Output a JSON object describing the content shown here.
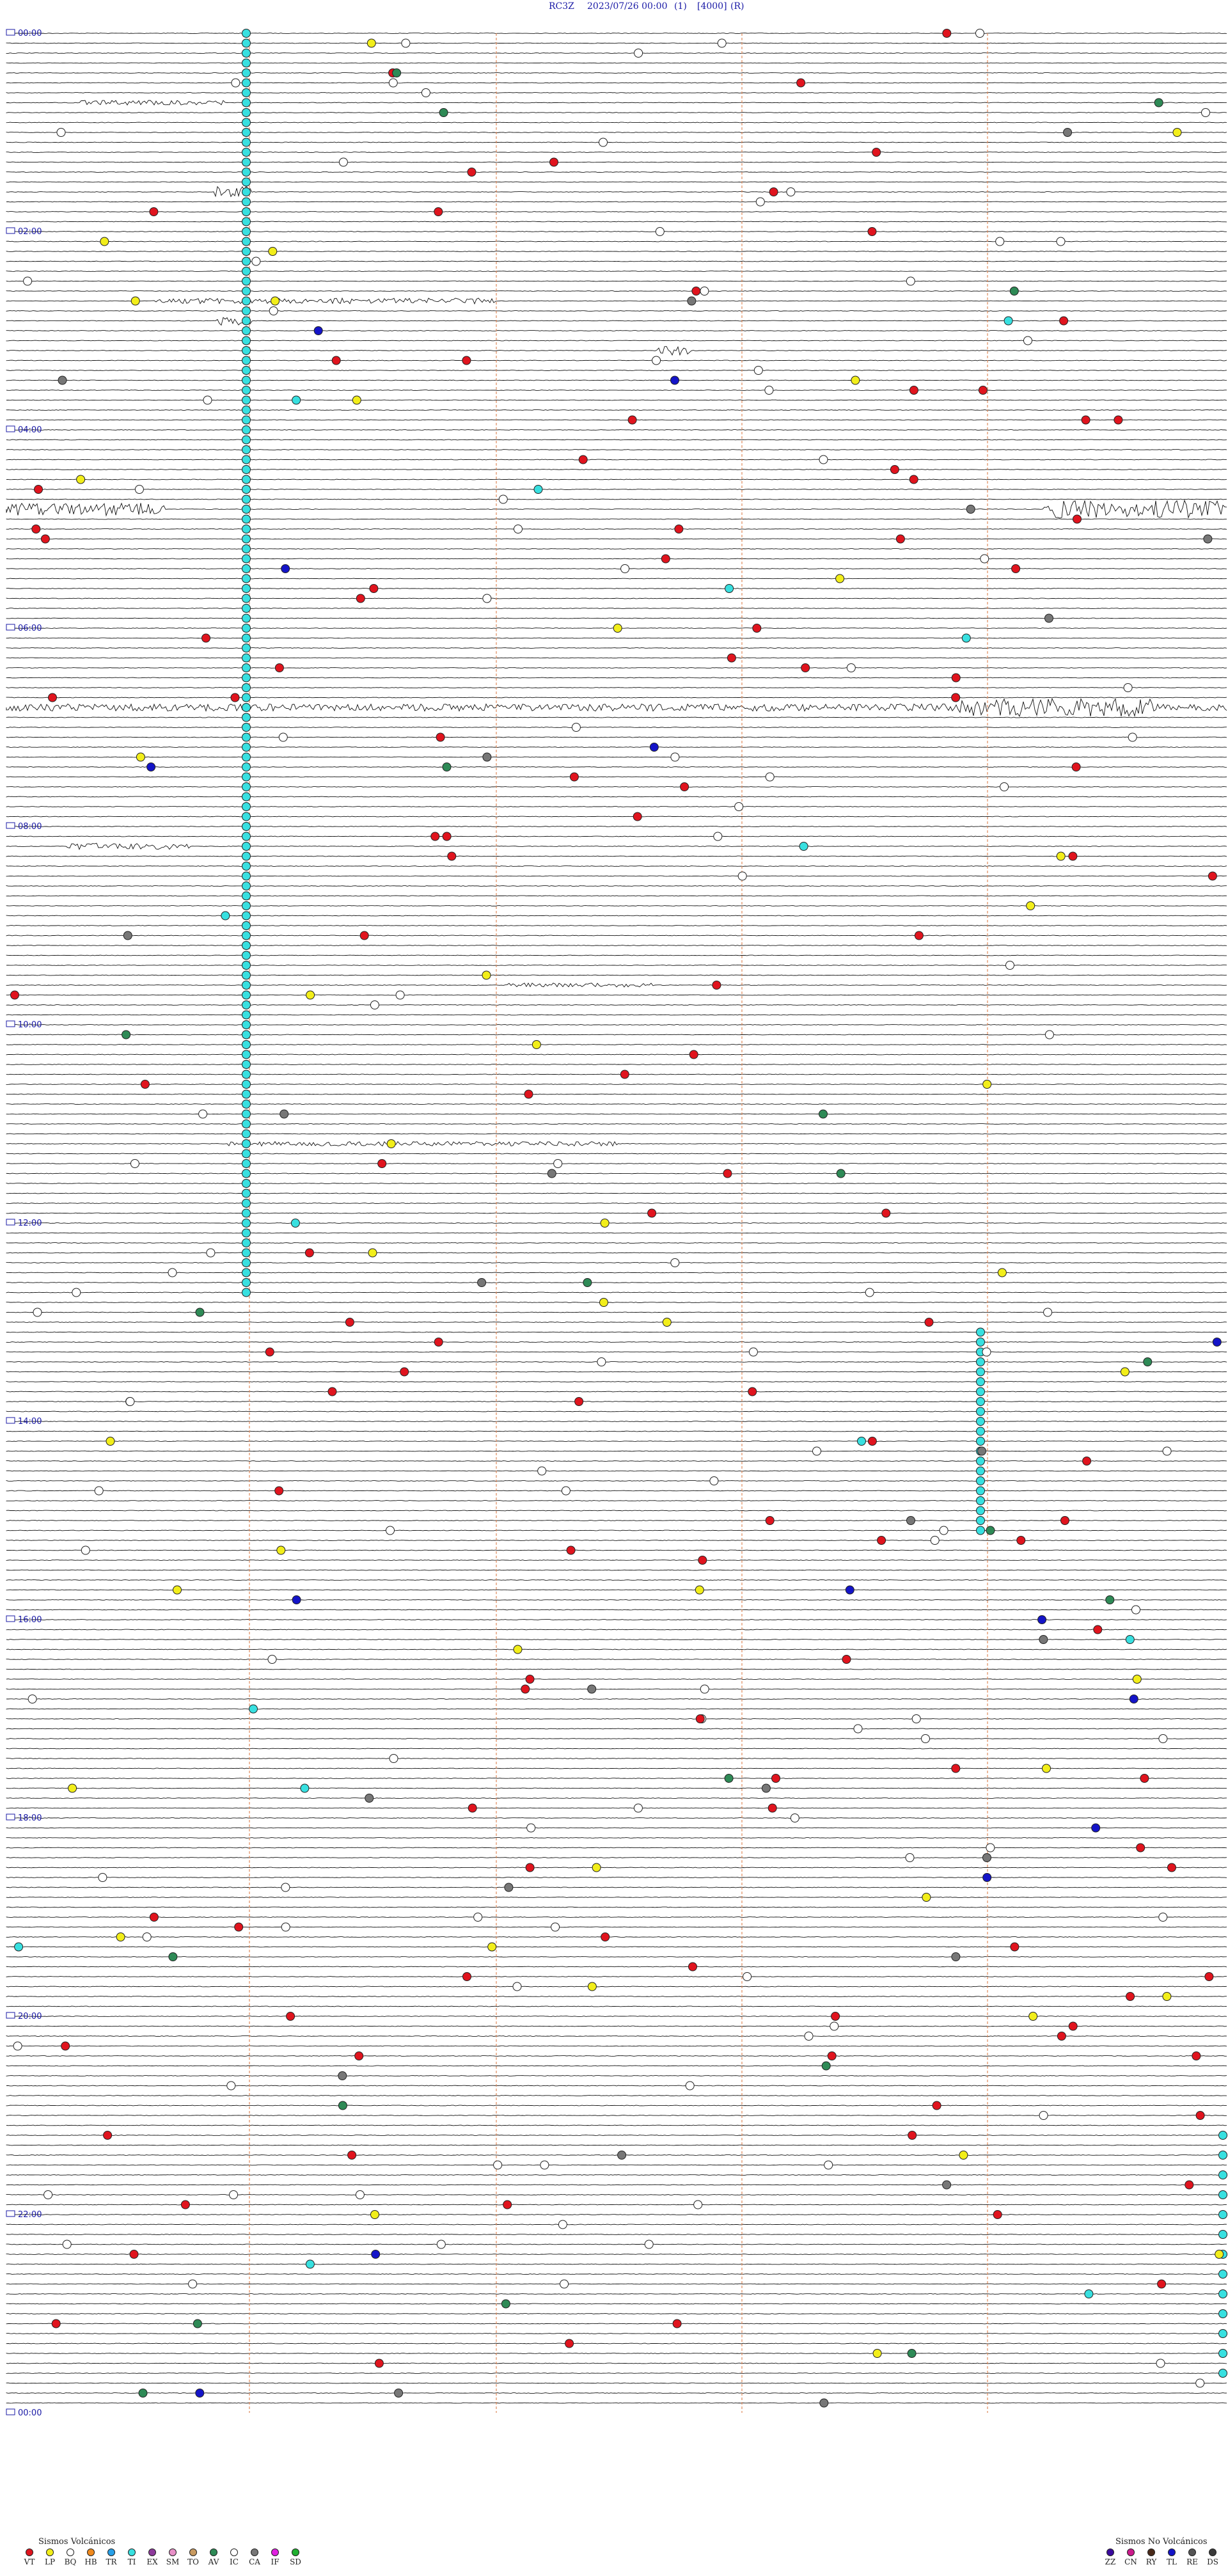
{
  "header": {
    "station": "RC3Z",
    "datetime": "2023/07/26 00:00",
    "filter": "(1)",
    "scale": "[4000]",
    "mode": "(R)"
  },
  "hour_labels": [
    "00:00",
    "02:00",
    "04:00",
    "06:00",
    "08:00",
    "10:00",
    "12:00",
    "14:00",
    "16:00",
    "18:00",
    "20:00",
    "22:00",
    "00:00"
  ],
  "colors": {
    "trace": "#111111",
    "hour_text": "#1a1aa6",
    "minute_marker": "#e08a5a",
    "VT": "#e0141e",
    "LP": "#f2ee1a",
    "BQ": "#ffffff",
    "HB": "#f08a1e",
    "TR": "#28a0e8",
    "TI": "#38e0e0",
    "EX": "#8e3a9c",
    "SM": "#e890c8",
    "TO": "#c89a60",
    "AV": "#2e8a56",
    "IC": "#ffffff",
    "CA": "#777777",
    "IF": "#e020e0",
    "SD": "#20b030",
    "ZZ": "#3a0a9e",
    "CN": "#cc1a8c",
    "RY": "#4a2a1a",
    "TL": "#1414c8",
    "RE": "#555555",
    "DS": "#3a3a3a"
  },
  "legend": {
    "volcanic_title": "Sismos Volcánicos",
    "volcanic": [
      {
        "code": "VT",
        "color": "#e0141e"
      },
      {
        "code": "LP",
        "color": "#f2ee1a"
      },
      {
        "code": "BQ",
        "color": "#ffffff"
      },
      {
        "code": "HB",
        "color": "#f08a1e"
      },
      {
        "code": "TR",
        "color": "#28a0e8"
      },
      {
        "code": "TI",
        "color": "#38e0e0"
      },
      {
        "code": "EX",
        "color": "#8e3a9c"
      },
      {
        "code": "SM",
        "color": "#e890c8"
      },
      {
        "code": "TO",
        "color": "#c89a60"
      },
      {
        "code": "AV",
        "color": "#2e8a56"
      },
      {
        "code": "IC",
        "color": "#ffffff"
      },
      {
        "code": "CA",
        "color": "#777777"
      },
      {
        "code": "IF",
        "color": "#e020e0"
      },
      {
        "code": "SD",
        "color": "#20b030"
      }
    ],
    "nonvolcanic_title": "Sismos No Volcánicos",
    "nonvolcanic": [
      {
        "code": "ZZ",
        "color": "#3a0a9e"
      },
      {
        "code": "CN",
        "color": "#cc1a8c"
      },
      {
        "code": "RY",
        "color": "#4a2a1a"
      },
      {
        "code": "TL",
        "color": "#1414c8"
      },
      {
        "code": "RE",
        "color": "#555555"
      },
      {
        "code": "DS",
        "color": "#3a3a3a"
      }
    ]
  },
  "bursts": [
    {
      "row": 7,
      "at": 0.06,
      "width": 0.12,
      "amp": 0.9
    },
    {
      "row": 16,
      "at": 0.17,
      "width": 0.03,
      "amp": 2.5
    },
    {
      "row": 27,
      "at": 0.12,
      "width": 0.28,
      "amp": 1.1
    },
    {
      "row": 29,
      "at": 0.17,
      "width": 0.03,
      "amp": 1.8
    },
    {
      "row": 32,
      "at": 0.53,
      "width": 0.03,
      "amp": 1.8
    },
    {
      "row": 48,
      "at": 0.0,
      "width": 0.13,
      "amp": 2.5
    },
    {
      "row": 48,
      "at": 0.85,
      "width": 0.15,
      "amp": 3.5
    },
    {
      "row": 68,
      "at": 0.0,
      "width": 1.0,
      "amp": 1.4
    },
    {
      "row": 68,
      "at": 0.78,
      "width": 0.16,
      "amp": 3.5
    },
    {
      "row": 82,
      "at": 0.05,
      "width": 0.1,
      "amp": 1.2
    },
    {
      "row": 112,
      "at": 0.18,
      "width": 0.32,
      "amp": 0.9
    },
    {
      "row": 96,
      "at": 0.41,
      "width": 0.12,
      "amp": 0.8
    }
  ]
}
